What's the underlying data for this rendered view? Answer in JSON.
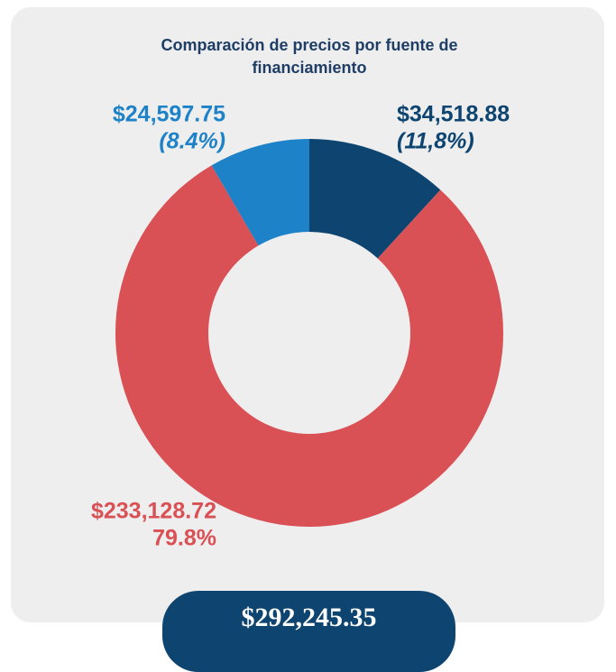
{
  "chart_data": {
    "type": "donut",
    "title": "Comparación de precios por fuente de financiamiento",
    "values": [
      34518.88,
      233128.72,
      24597.75
    ],
    "value_labels": [
      "$34,518.88",
      "$233,128.72",
      "$24,597.75"
    ],
    "percentages": [
      11.8,
      79.8,
      8.4
    ],
    "percentage_labels": [
      "(11,8%)",
      "79.8%",
      "(8.4%)"
    ],
    "colors": [
      "#0d4470",
      "#d95055",
      "#1e82c8"
    ],
    "total": 292245.35,
    "total_label": "$292,245.35"
  }
}
